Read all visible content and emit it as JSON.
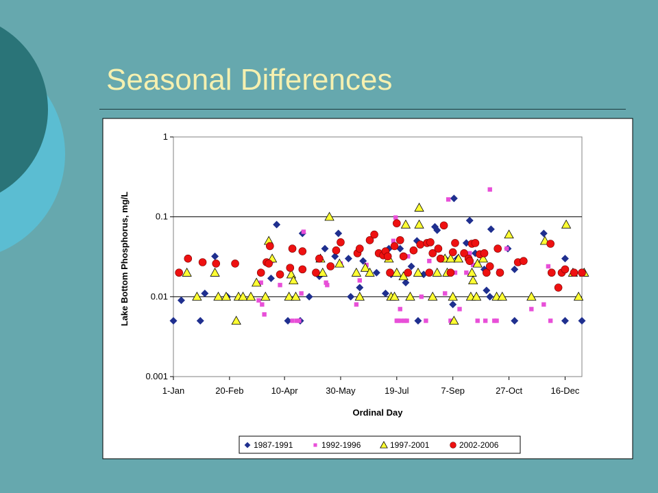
{
  "slide": {
    "title": "Seasonal Differences",
    "background": "#66a8ae",
    "title_color": "#f5f0b0",
    "circle_dark": "#2a7478",
    "circle_light": "#5bbdd2"
  },
  "chart_data": {
    "type": "scatter",
    "title": "",
    "xlabel": "Ordinal Day",
    "ylabel": "Lake Bottom Phosphorus, mg/L",
    "xlim": [
      1,
      365
    ],
    "ylim": [
      0.001,
      1
    ],
    "yscale": "log",
    "grid": "horizontal major",
    "legend_position": "bottom",
    "x_ticks": [
      {
        "x": 1,
        "label": "1-Jan"
      },
      {
        "x": 51,
        "label": "20-Feb"
      },
      {
        "x": 100,
        "label": "10-Apr"
      },
      {
        "x": 150,
        "label": "30-May"
      },
      {
        "x": 200,
        "label": "19-Jul"
      },
      {
        "x": 250,
        "label": "7-Sep"
      },
      {
        "x": 300,
        "label": "27-Oct"
      },
      {
        "x": 350,
        "label": "16-Dec"
      }
    ],
    "y_ticks": [
      {
        "y": 1,
        "label": "1"
      },
      {
        "y": 0.1,
        "label": "0.1"
      },
      {
        "y": 0.01,
        "label": "0.01"
      },
      {
        "y": 0.001,
        "label": "0.001"
      }
    ],
    "series": [
      {
        "name": "1987-1991",
        "marker": "diamond",
        "color": "#1f2f8f",
        "points": [
          [
            1,
            0.005
          ],
          [
            8,
            0.009
          ],
          [
            25,
            0.005
          ],
          [
            29,
            0.011
          ],
          [
            38,
            0.032
          ],
          [
            49,
            0.01
          ],
          [
            88,
            0.017
          ],
          [
            93,
            0.08
          ],
          [
            103,
            0.005
          ],
          [
            114,
            0.005
          ],
          [
            116,
            0.062
          ],
          [
            122,
            0.01
          ],
          [
            131,
            0.018
          ],
          [
            136,
            0.04
          ],
          [
            145,
            0.032
          ],
          [
            148,
            0.062
          ],
          [
            157,
            0.03
          ],
          [
            159,
            0.01
          ],
          [
            167,
            0.013
          ],
          [
            170,
            0.028
          ],
          [
            182,
            0.02
          ],
          [
            190,
            0.011
          ],
          [
            193,
            0.04
          ],
          [
            195,
            0.019
          ],
          [
            203,
            0.04
          ],
          [
            208,
            0.015
          ],
          [
            213,
            0.024
          ],
          [
            219,
            0.005
          ],
          [
            218,
            0.05
          ],
          [
            224,
            0.019
          ],
          [
            230,
            0.048
          ],
          [
            234,
            0.075
          ],
          [
            236,
            0.068
          ],
          [
            243,
            0.03
          ],
          [
            247,
            0.02
          ],
          [
            250,
            0.008
          ],
          [
            251,
            0.17
          ],
          [
            254,
            0.03
          ],
          [
            262,
            0.047
          ],
          [
            265,
            0.09
          ],
          [
            270,
            0.035
          ],
          [
            278,
            0.022
          ],
          [
            280,
            0.012
          ],
          [
            283,
            0.01
          ],
          [
            284,
            0.07
          ],
          [
            299,
            0.04
          ],
          [
            305,
            0.022
          ],
          [
            305,
            0.005
          ],
          [
            331,
            0.062
          ],
          [
            350,
            0.03
          ],
          [
            350,
            0.005
          ],
          [
            365,
            0.005
          ]
        ]
      },
      {
        "name": "1992-1996",
        "marker": "square",
        "color": "#e84fd8",
        "points": [
          [
            77,
            0.009
          ],
          [
            79,
            0.015
          ],
          [
            80,
            0.008
          ],
          [
            82,
            0.006
          ],
          [
            89,
            0.028
          ],
          [
            96,
            0.014
          ],
          [
            107,
            0.005
          ],
          [
            111,
            0.005
          ],
          [
            113,
            0.005
          ],
          [
            115,
            0.011
          ],
          [
            117,
            0.065
          ],
          [
            137,
            0.015
          ],
          [
            138,
            0.014
          ],
          [
            150,
            0.026
          ],
          [
            164,
            0.008
          ],
          [
            167,
            0.016
          ],
          [
            173,
            0.025
          ],
          [
            197,
            0.05
          ],
          [
            199,
            0.098
          ],
          [
            200,
            0.005
          ],
          [
            201,
            0.005
          ],
          [
            203,
            0.007
          ],
          [
            204,
            0.005
          ],
          [
            207,
            0.005
          ],
          [
            209,
            0.005
          ],
          [
            210,
            0.032
          ],
          [
            211,
            0.02
          ],
          [
            222,
            0.01
          ],
          [
            226,
            0.005
          ],
          [
            229,
            0.028
          ],
          [
            243,
            0.011
          ],
          [
            246,
            0.165
          ],
          [
            248,
            0.005
          ],
          [
            252,
            0.02
          ],
          [
            256,
            0.007
          ],
          [
            262,
            0.02
          ],
          [
            265,
            0.035
          ],
          [
            268,
            0.025
          ],
          [
            272,
            0.005
          ],
          [
            279,
            0.005
          ],
          [
            283,
            0.22
          ],
          [
            287,
            0.005
          ],
          [
            289,
            0.005
          ],
          [
            291,
            0.021
          ],
          [
            298,
            0.04
          ],
          [
            320,
            0.007
          ],
          [
            331,
            0.008
          ],
          [
            335,
            0.024
          ],
          [
            337,
            0.005
          ]
        ]
      },
      {
        "name": "1997-2001",
        "marker": "triangle",
        "color": "#ffff33",
        "points": [
          [
            13,
            0.02
          ],
          [
            22,
            0.01
          ],
          [
            38,
            0.02
          ],
          [
            41,
            0.01
          ],
          [
            48,
            0.01
          ],
          [
            57,
            0.005
          ],
          [
            59,
            0.01
          ],
          [
            63,
            0.01
          ],
          [
            70,
            0.01
          ],
          [
            75,
            0.015
          ],
          [
            83,
            0.01
          ],
          [
            86,
            0.05
          ],
          [
            89,
            0.03
          ],
          [
            104,
            0.01
          ],
          [
            106,
            0.019
          ],
          [
            108,
            0.016
          ],
          [
            110,
            0.01
          ],
          [
            132,
            0.03
          ],
          [
            134,
            0.02
          ],
          [
            140,
            0.1
          ],
          [
            149,
            0.026
          ],
          [
            164,
            0.02
          ],
          [
            167,
            0.01
          ],
          [
            172,
            0.023
          ],
          [
            176,
            0.02
          ],
          [
            193,
            0.03
          ],
          [
            195,
            0.01
          ],
          [
            198,
            0.01
          ],
          [
            200,
            0.02
          ],
          [
            206,
            0.018
          ],
          [
            208,
            0.08
          ],
          [
            212,
            0.01
          ],
          [
            219,
            0.02
          ],
          [
            220,
            0.13
          ],
          [
            220,
            0.08
          ],
          [
            232,
            0.01
          ],
          [
            236,
            0.02
          ],
          [
            243,
            0.03
          ],
          [
            245,
            0.02
          ],
          [
            248,
            0.03
          ],
          [
            250,
            0.01
          ],
          [
            251,
            0.005
          ],
          [
            255,
            0.03
          ],
          [
            266,
            0.01
          ],
          [
            267,
            0.02
          ],
          [
            268,
            0.016
          ],
          [
            271,
            0.01
          ],
          [
            272,
            0.026
          ],
          [
            277,
            0.03
          ],
          [
            289,
            0.01
          ],
          [
            294,
            0.01
          ],
          [
            300,
            0.06
          ],
          [
            320,
            0.01
          ],
          [
            332,
            0.05
          ],
          [
            351,
            0.08
          ],
          [
            357,
            0.02
          ],
          [
            362,
            0.01
          ],
          [
            367,
            0.02
          ]
        ]
      },
      {
        "name": "2002-2006",
        "marker": "circle",
        "color": "#ee1111",
        "points": [
          [
            6,
            0.02
          ],
          [
            14,
            0.03
          ],
          [
            27,
            0.027
          ],
          [
            39,
            0.026
          ],
          [
            56,
            0.026
          ],
          [
            79,
            0.02
          ],
          [
            84,
            0.027
          ],
          [
            86,
            0.026
          ],
          [
            87,
            0.043
          ],
          [
            96,
            0.019
          ],
          [
            105,
            0.023
          ],
          [
            107,
            0.04
          ],
          [
            116,
            0.037
          ],
          [
            116,
            0.022
          ],
          [
            128,
            0.02
          ],
          [
            131,
            0.03
          ],
          [
            141,
            0.024
          ],
          [
            146,
            0.038
          ],
          [
            150,
            0.048
          ],
          [
            165,
            0.035
          ],
          [
            167,
            0.04
          ],
          [
            176,
            0.051
          ],
          [
            180,
            0.06
          ],
          [
            184,
            0.035
          ],
          [
            188,
            0.033
          ],
          [
            190,
            0.037
          ],
          [
            192,
            0.032
          ],
          [
            194,
            0.02
          ],
          [
            198,
            0.043
          ],
          [
            200,
            0.083
          ],
          [
            203,
            0.051
          ],
          [
            206,
            0.032
          ],
          [
            210,
            0.02
          ],
          [
            215,
            0.038
          ],
          [
            221,
            0.045
          ],
          [
            227,
            0.047
          ],
          [
            229,
            0.02
          ],
          [
            230,
            0.048
          ],
          [
            232,
            0.035
          ],
          [
            237,
            0.04
          ],
          [
            239,
            0.03
          ],
          [
            242,
            0.078
          ],
          [
            248,
            0.02
          ],
          [
            250,
            0.036
          ],
          [
            252,
            0.047
          ],
          [
            260,
            0.035
          ],
          [
            264,
            0.03
          ],
          [
            265,
            0.028
          ],
          [
            267,
            0.046
          ],
          [
            270,
            0.047
          ],
          [
            274,
            0.034
          ],
          [
            278,
            0.035
          ],
          [
            280,
            0.02
          ],
          [
            283,
            0.024
          ],
          [
            290,
            0.04
          ],
          [
            292,
            0.02
          ],
          [
            308,
            0.027
          ],
          [
            313,
            0.028
          ],
          [
            337,
            0.046
          ],
          [
            338,
            0.02
          ],
          [
            344,
            0.013
          ],
          [
            347,
            0.02
          ],
          [
            350,
            0.022
          ],
          [
            358,
            0.02
          ],
          [
            365,
            0.02
          ]
        ]
      }
    ]
  }
}
